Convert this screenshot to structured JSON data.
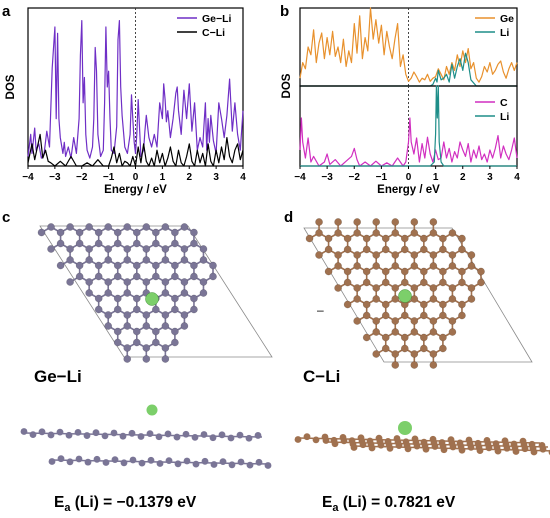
{
  "panels": {
    "a": "a",
    "b": "b",
    "c": "c",
    "d": "d"
  },
  "structures": {
    "left_label": "Ge−Li",
    "right_label": "C−Li",
    "left_ea_prefix": "E",
    "left_ea_sub": "a",
    "left_ea_suffix": " (Li) = −0.1379 eV",
    "right_ea_prefix": "E",
    "right_ea_sub": "a",
    "right_ea_suffix": " (Li) = 0.7821 eV",
    "stray_mark": "–",
    "colors": {
      "ge_atom": "#7a7596",
      "c_atom": "#a0714f",
      "li_atom": "#7ccf6a",
      "cell_line": "#8a8a8a"
    }
  },
  "chart_data": [
    {
      "type": "line",
      "panel": "a",
      "xlabel": "Energy / eV",
      "ylabel": "DOS",
      "xlim": [
        -4,
        4
      ],
      "xticks": [
        -4,
        -3,
        -2,
        -1,
        0,
        1,
        2,
        3,
        4
      ],
      "ylim": [
        0,
        1
      ],
      "fermi_line": 0,
      "legend_position": "top-right",
      "series": [
        {
          "name": "Ge−Li",
          "color": "#6f2fc6",
          "x": [
            -4,
            -3.9,
            -3.85,
            -3.75,
            -3.7,
            -3.6,
            -3.5,
            -3.4,
            -3.3,
            -3.2,
            -3.1,
            -3.0,
            -2.95,
            -2.9,
            -2.85,
            -2.8,
            -2.7,
            -2.65,
            -2.6,
            -2.5,
            -2.4,
            -2.3,
            -2.2,
            -2.1,
            -2.05,
            -2.0,
            -1.95,
            -1.9,
            -1.85,
            -1.8,
            -1.7,
            -1.6,
            -1.55,
            -1.5,
            -1.45,
            -1.4,
            -1.3,
            -1.2,
            -1.15,
            -1.1,
            -1.05,
            -1.0,
            -0.95,
            -0.9,
            -0.8,
            -0.7,
            -0.65,
            -0.6,
            -0.55,
            -0.5,
            -0.4,
            -0.3,
            -0.2,
            -0.15,
            -0.1,
            -0.05,
            0.0,
            0.05,
            0.1,
            0.2,
            0.3,
            0.35,
            0.4,
            0.5,
            0.6,
            0.7,
            0.8,
            0.9,
            1.0,
            1.05,
            1.1,
            1.15,
            1.2,
            1.3,
            1.4,
            1.5,
            1.55,
            1.6,
            1.7,
            1.8,
            1.9,
            2.0,
            2.1,
            2.2,
            2.3,
            2.4,
            2.5,
            2.55,
            2.6,
            2.65,
            2.7,
            2.75,
            2.8,
            2.9,
            3.0,
            3.1,
            3.2,
            3.3,
            3.4,
            3.5,
            3.6,
            3.7,
            3.8,
            3.9,
            4.0
          ],
          "y": [
            0.06,
            0.2,
            0.08,
            0.24,
            0.1,
            0.14,
            0.05,
            0.08,
            0.22,
            0.12,
            0.62,
            0.88,
            0.3,
            0.84,
            0.3,
            0.18,
            0.08,
            0.15,
            0.06,
            0.12,
            0.05,
            0.18,
            0.08,
            0.3,
            0.7,
            0.92,
            0.4,
            0.56,
            0.2,
            0.1,
            0.05,
            0.12,
            0.3,
            0.75,
            0.6,
            0.2,
            0.06,
            0.1,
            0.4,
            0.88,
            0.5,
            0.6,
            0.3,
            0.1,
            0.08,
            0.25,
            0.8,
            0.92,
            0.5,
            0.32,
            0.12,
            0.08,
            0.2,
            0.45,
            0.3,
            0.15,
            0.08,
            0.2,
            0.42,
            0.06,
            0.1,
            0.22,
            0.32,
            0.18,
            0.12,
            0.2,
            0.12,
            0.4,
            0.3,
            0.52,
            0.42,
            0.28,
            0.35,
            0.18,
            0.3,
            0.46,
            0.5,
            0.35,
            0.2,
            0.48,
            0.3,
            0.52,
            0.22,
            0.4,
            0.1,
            0.18,
            0.12,
            0.26,
            0.4,
            0.1,
            0.3,
            0.15,
            0.32,
            0.16,
            0.08,
            0.4,
            0.3,
            0.18,
            0.32,
            0.55,
            0.22,
            0.4,
            0.2,
            0.1,
            0.35
          ]
        },
        {
          "name": "C−Li",
          "color": "#000000",
          "x": [
            -4,
            -3.85,
            -3.75,
            -3.65,
            -3.55,
            -3.45,
            -3.35,
            -3.25,
            -3.15,
            -3.0,
            -2.8,
            -2.6,
            -2.4,
            -2.2,
            -2.0,
            -1.8,
            -1.6,
            -1.4,
            -1.2,
            -1.0,
            -0.9,
            -0.8,
            -0.7,
            -0.6,
            -0.5,
            -0.4,
            -0.3,
            -0.2,
            -0.1,
            0.0,
            0.1,
            0.2,
            0.3,
            0.4,
            0.5,
            0.6,
            0.7,
            0.8,
            0.9,
            1.0,
            1.1,
            1.2,
            1.3,
            1.4,
            1.5,
            1.6,
            1.7,
            1.8,
            1.9,
            2.0,
            2.1,
            2.2,
            2.3,
            2.4,
            2.5,
            2.6,
            2.7,
            2.8,
            2.9,
            3.0,
            3.1,
            3.2,
            3.3,
            3.4,
            3.5,
            3.6,
            3.7,
            3.8,
            3.9,
            4.0
          ],
          "y": [
            0.02,
            0.14,
            0.04,
            0.12,
            0.2,
            0.05,
            0.1,
            0.03,
            0.02,
            0.0,
            0.03,
            0.0,
            0.06,
            0.0,
            0.0,
            0.02,
            0.0,
            0.04,
            0.0,
            0.0,
            0.05,
            0.12,
            0.02,
            0.08,
            0.0,
            0.03,
            0.02,
            0.0,
            0.06,
            0.0,
            0.12,
            0.02,
            0.14,
            0.03,
            0.0,
            0.05,
            0.0,
            0.1,
            0.02,
            0.08,
            0.0,
            0.05,
            0.12,
            0.03,
            0.0,
            0.1,
            0.02,
            0.0,
            0.06,
            0.14,
            0.03,
            0.0,
            0.1,
            0.02,
            0.08,
            0.0,
            0.14,
            0.03,
            0.0,
            0.1,
            0.02,
            0.12,
            0.04,
            0.18,
            0.06,
            0.02,
            0.1,
            0.14,
            0.04,
            0.1
          ]
        }
      ]
    },
    {
      "type": "line",
      "panel": "b-top",
      "ylabel": "DOS",
      "xlim": [
        -4,
        4
      ],
      "ylim": [
        0,
        1
      ],
      "fermi_line": 0,
      "legend_position": "top-right",
      "series": [
        {
          "name": "Ge",
          "color": "#e8912d",
          "x": [
            -4,
            -3.9,
            -3.8,
            -3.7,
            -3.6,
            -3.5,
            -3.4,
            -3.3,
            -3.2,
            -3.1,
            -3.0,
            -2.9,
            -2.8,
            -2.7,
            -2.6,
            -2.5,
            -2.4,
            -2.3,
            -2.2,
            -2.1,
            -2.0,
            -1.9,
            -1.8,
            -1.7,
            -1.6,
            -1.5,
            -1.4,
            -1.3,
            -1.2,
            -1.1,
            -1.0,
            -0.9,
            -0.8,
            -0.7,
            -0.6,
            -0.5,
            -0.4,
            -0.3,
            -0.2,
            -0.1,
            0.0,
            0.1,
            0.2,
            0.3,
            0.4,
            0.5,
            0.6,
            0.7,
            0.8,
            0.9,
            1.0,
            1.1,
            1.2,
            1.3,
            1.4,
            1.5,
            1.6,
            1.7,
            1.8,
            1.9,
            2.0,
            2.1,
            2.2,
            2.3,
            2.4,
            2.5,
            2.6,
            2.7,
            2.8,
            2.9,
            3.0,
            3.1,
            3.2,
            3.3,
            3.4,
            3.5,
            3.6,
            3.7,
            3.8,
            3.9,
            4.0
          ],
          "y": [
            0.1,
            0.3,
            0.22,
            0.5,
            0.4,
            0.72,
            0.3,
            0.55,
            0.68,
            0.35,
            0.62,
            0.4,
            0.7,
            0.38,
            0.5,
            0.3,
            0.6,
            0.25,
            0.45,
            0.3,
            0.8,
            0.42,
            0.9,
            0.35,
            0.62,
            0.45,
            1.0,
            0.6,
            0.85,
            0.55,
            0.78,
            0.4,
            0.7,
            0.5,
            0.35,
            0.6,
            0.8,
            0.25,
            0.4,
            0.15,
            0.06,
            0.1,
            0.18,
            0.12,
            0.05,
            0.1,
            0.08,
            0.15,
            0.06,
            0.1,
            0.12,
            0.22,
            0.15,
            0.08,
            0.25,
            0.15,
            0.3,
            0.2,
            0.4,
            0.25,
            0.45,
            0.3,
            0.48,
            0.22,
            0.3,
            0.1,
            0.05,
            0.12,
            0.25,
            0.18,
            0.3,
            0.15,
            0.2,
            0.28,
            0.32,
            0.18,
            0.1,
            0.22,
            0.3,
            0.2,
            0.3
          ]
        },
        {
          "name": "Li",
          "color": "#1f8e89",
          "x": [
            -4,
            -3.0,
            -2.0,
            -1.0,
            -0.5,
            0.0,
            0.5,
            0.8,
            0.9,
            1.0,
            1.05,
            1.1,
            1.2,
            1.3,
            1.4,
            1.5,
            1.6,
            1.7,
            1.8,
            1.9,
            2.0,
            2.1,
            2.2,
            2.3,
            2.5,
            3.0,
            3.5,
            4.0
          ],
          "y": [
            0.0,
            0.0,
            0.0,
            0.0,
            0.0,
            0.0,
            0.0,
            0.0,
            0.02,
            0.1,
            0.05,
            0.2,
            0.08,
            0.1,
            0.15,
            0.05,
            0.28,
            0.1,
            0.25,
            0.35,
            0.2,
            0.42,
            0.3,
            0.08,
            0.0,
            0.0,
            0.0,
            0.0
          ]
        }
      ]
    },
    {
      "type": "line",
      "panel": "b-bottom",
      "xlabel": "Energy / eV",
      "xlim": [
        -4,
        4
      ],
      "xticks": [
        -4,
        -3,
        -2,
        -1,
        0,
        1,
        2,
        3,
        4
      ],
      "ylim": [
        0,
        1
      ],
      "fermi_line": 0,
      "legend_position": "top-right",
      "series": [
        {
          "name": "C",
          "color": "#d12fc0",
          "x": [
            -4,
            -3.95,
            -3.9,
            -3.8,
            -3.7,
            -3.6,
            -3.5,
            -3.3,
            -3.1,
            -3.0,
            -2.9,
            -2.7,
            -2.5,
            -2.3,
            -2.1,
            -2.0,
            -1.9,
            -1.8,
            -1.6,
            -1.4,
            -1.2,
            -1.0,
            -0.8,
            -0.6,
            -0.4,
            -0.2,
            -0.1,
            0.0,
            0.05,
            0.1,
            0.2,
            0.3,
            0.4,
            0.5,
            0.6,
            0.7,
            0.8,
            0.9,
            1.0,
            1.1,
            1.2,
            1.3,
            1.4,
            1.5,
            1.6,
            1.7,
            1.8,
            1.9,
            2.0,
            2.1,
            2.2,
            2.3,
            2.4,
            2.5,
            2.6,
            2.7,
            2.8,
            2.9,
            3.0,
            3.1,
            3.2,
            3.3,
            3.4,
            3.5,
            3.6,
            3.7,
            3.8,
            3.9,
            4.0
          ],
          "y": [
            0.2,
            0.6,
            0.3,
            0.1,
            0.35,
            0.05,
            0.12,
            0.0,
            0.05,
            0.15,
            0.02,
            0.08,
            0.0,
            0.06,
            0.12,
            0.22,
            0.08,
            0.0,
            0.05,
            0.0,
            0.06,
            0.0,
            0.04,
            0.0,
            0.1,
            0.0,
            0.05,
            0.3,
            0.6,
            0.3,
            0.15,
            0.35,
            0.05,
            0.28,
            0.1,
            0.36,
            0.15,
            0.05,
            0.2,
            0.08,
            0.1,
            0.3,
            0.1,
            0.22,
            0.05,
            0.18,
            0.1,
            0.3,
            0.2,
            0.12,
            0.28,
            0.05,
            0.2,
            0.1,
            0.25,
            0.08,
            0.15,
            0.05,
            0.2,
            0.1,
            0.22,
            0.38,
            0.1,
            0.25,
            0.15,
            0.08,
            0.2,
            0.35,
            0.1
          ]
        },
        {
          "name": "Li",
          "color": "#1f8e89",
          "x": [
            -4,
            -2.0,
            0.0,
            0.8,
            0.95,
            1.0,
            1.03,
            1.06,
            1.1,
            1.13,
            1.2,
            1.3,
            1.5,
            2.0,
            3.0,
            4.0
          ],
          "y": [
            0.0,
            0.0,
            0.0,
            0.0,
            0.05,
            0.4,
            1.0,
            0.6,
            1.0,
            0.3,
            0.05,
            0.0,
            0.0,
            0.0,
            0.0,
            0.0
          ]
        }
      ]
    }
  ]
}
